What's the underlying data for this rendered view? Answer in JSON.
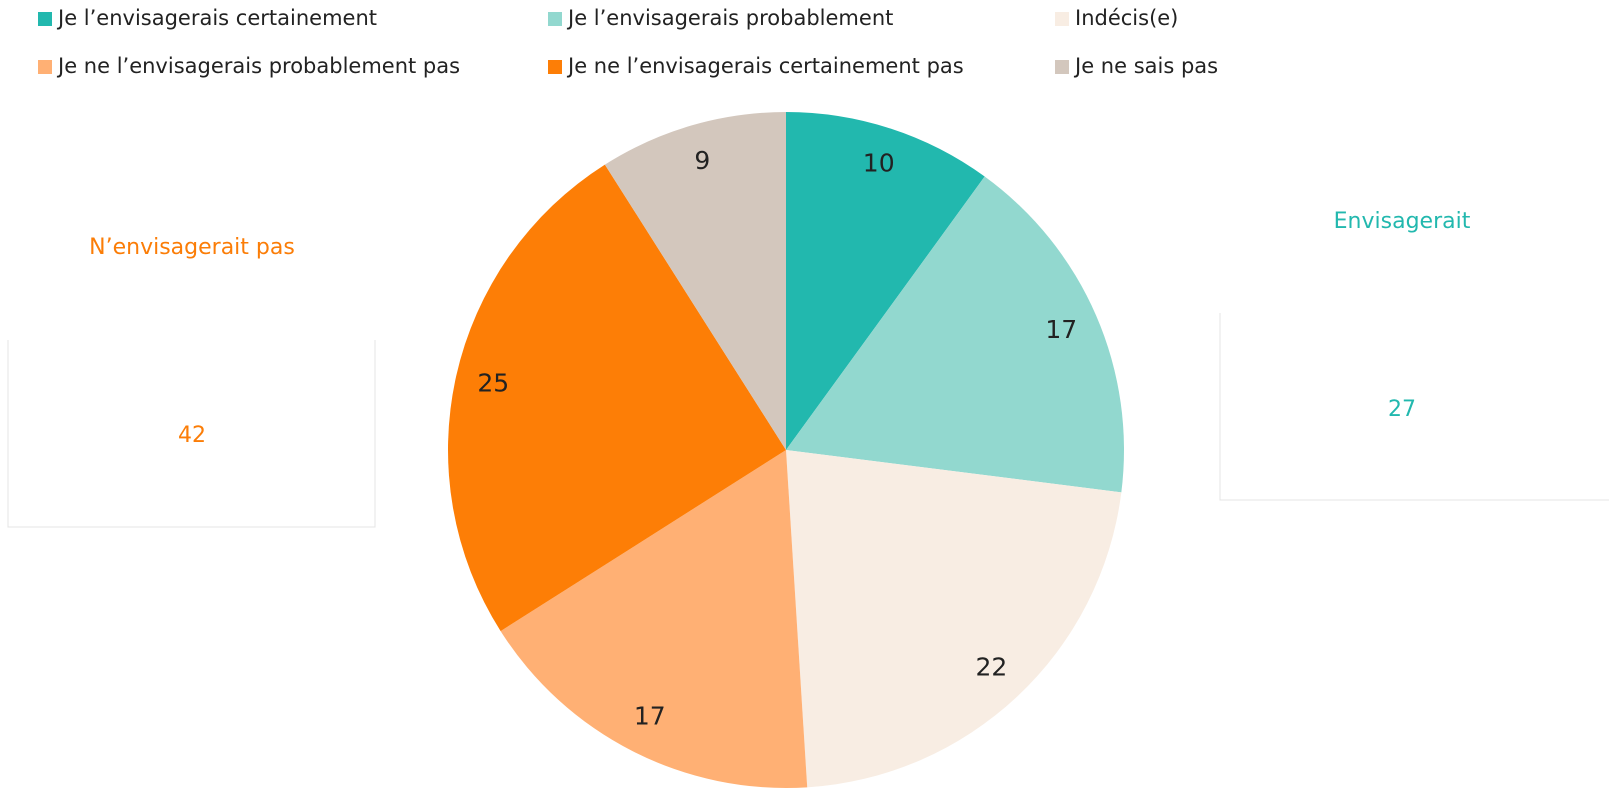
{
  "chart_data": {
    "type": "pie",
    "categories": [
      "Je l’envisagerais certainement",
      "Je l’envisagerais probablement",
      "Indécis(e)",
      "Je ne l’envisagerais probablement pas",
      "Je ne l’envisagerais certainement pas",
      "Je ne sais pas"
    ],
    "values": [
      10,
      17,
      22,
      17,
      25,
      9
    ],
    "colors": [
      "#22b8ae",
      "#92d8cf",
      "#f8ede3",
      "#ffb074",
      "#fd7e06",
      "#d3c7bd"
    ],
    "annotations": [
      {
        "title": "N’envisagerait pas",
        "value": 42,
        "color": "#fb7d07"
      },
      {
        "title": "Envisagerait",
        "value": 27,
        "color": "#22b8ae"
      }
    ]
  }
}
